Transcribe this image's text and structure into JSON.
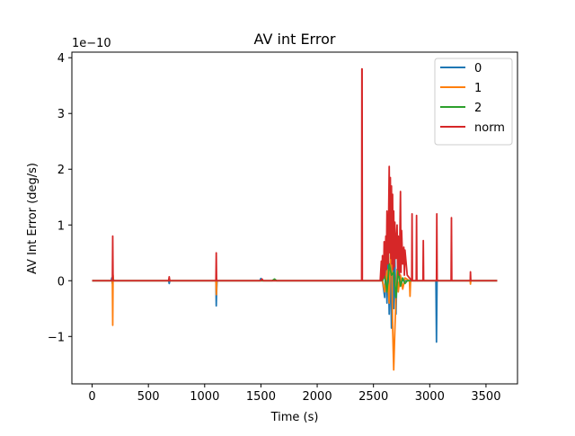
{
  "chart_data": {
    "type": "line",
    "title": "AV int Error",
    "xlabel": "Time (s)",
    "ylabel": "AV Int Error (deg/s)",
    "y_scale_label": "1e−10",
    "y_multiplier": 1e-10,
    "xlim": [
      -180,
      3780
    ],
    "ylim": [
      -1.85,
      4.1
    ],
    "xticks": [
      0,
      500,
      1000,
      1500,
      2000,
      2500,
      3000,
      3500
    ],
    "xtick_labels": [
      "0",
      "500",
      "1000",
      "1500",
      "2000",
      "2500",
      "3000",
      "3500"
    ],
    "yticks": [
      -1,
      0,
      1,
      2,
      3,
      4
    ],
    "ytick_labels": [
      "−1",
      "0",
      "1",
      "2",
      "3",
      "4"
    ],
    "grid": false,
    "legend_position": "top-right",
    "series": [
      {
        "name": "0",
        "color": "#1f77b4",
        "x": [
          0,
          170,
          175,
          180,
          185,
          680,
          685,
          690,
          1100,
          1103,
          1106,
          1110,
          1490,
          1500,
          1510,
          2580,
          2600,
          2610,
          2620,
          2630,
          2640,
          2650,
          2660,
          2670,
          2680,
          2690,
          2700,
          2710,
          2720,
          2740,
          2760,
          3055,
          3060,
          3065,
          3600
        ],
        "values": [
          0,
          0,
          0.05,
          -0.05,
          0,
          0,
          -0.05,
          0,
          0,
          -0.45,
          -0.2,
          0,
          0,
          0.04,
          0,
          0,
          -0.3,
          0.4,
          -0.4,
          0.5,
          -0.6,
          0.5,
          -0.85,
          0.6,
          -0.5,
          0.4,
          -0.6,
          0.2,
          -0.15,
          0.05,
          0,
          0,
          -1.1,
          0,
          0
        ]
      },
      {
        "name": "1",
        "color": "#ff7f0e",
        "x": [
          0,
          180,
          183,
          186,
          190,
          680,
          685,
          690,
          1100,
          1104,
          1108,
          2580,
          2600,
          2620,
          2640,
          2650,
          2660,
          2670,
          2680,
          2690,
          2700,
          2710,
          2720,
          2740,
          2760,
          2780,
          2820,
          2825,
          2830,
          3360,
          3362,
          3365,
          3600
        ],
        "values": [
          0,
          0,
          -0.8,
          0.1,
          0,
          0,
          0.04,
          0,
          0,
          -0.25,
          0,
          0,
          -0.2,
          0.2,
          -0.4,
          0.4,
          1.0,
          -0.8,
          -1.6,
          -0.9,
          -0.3,
          0.2,
          -0.2,
          0.1,
          -0.15,
          0.05,
          0,
          -0.28,
          0,
          0,
          -0.06,
          0,
          0
        ]
      },
      {
        "name": "2",
        "color": "#2ca02c",
        "x": [
          0,
          180,
          185,
          190,
          1500,
          1600,
          1620,
          1640,
          2580,
          2600,
          2620,
          2640,
          2660,
          2680,
          2700,
          2720,
          2740,
          2760,
          2780,
          2800,
          3600
        ],
        "values": [
          0,
          0,
          0.03,
          0,
          0,
          0,
          0.03,
          0,
          0,
          0.1,
          -0.2,
          0.3,
          0.1,
          0.15,
          -0.3,
          0.2,
          -0.1,
          0.05,
          -0.05,
          0,
          0
        ]
      },
      {
        "name": "norm",
        "color": "#d62728",
        "x": [
          0,
          180,
          183,
          186,
          680,
          685,
          690,
          1100,
          1103,
          1106,
          1500,
          1510,
          1520,
          2395,
          2397,
          2399,
          2401,
          2403,
          2560,
          2570,
          2575,
          2580,
          2590,
          2595,
          2600,
          2610,
          2615,
          2620,
          2630,
          2640,
          2645,
          2650,
          2655,
          2660,
          2665,
          2670,
          2675,
          2680,
          2685,
          2690,
          2700,
          2710,
          2715,
          2720,
          2730,
          2740,
          2745,
          2750,
          2760,
          2770,
          2775,
          2780,
          2800,
          2840,
          2843,
          2846,
          2880,
          2883,
          2886,
          2940,
          2943,
          2946,
          3060,
          3063,
          3066,
          3190,
          3193,
          3196,
          3360,
          3362,
          3365,
          3600
        ],
        "values": [
          0,
          0,
          0.8,
          0,
          0,
          0.07,
          0,
          0,
          0.5,
          0,
          0,
          0.03,
          0,
          0,
          3.8,
          3.8,
          0,
          0,
          0,
          0.35,
          0,
          0.45,
          0.05,
          0.7,
          0.1,
          0.8,
          0.2,
          1.25,
          0.3,
          2.05,
          0.5,
          1.85,
          0.4,
          1.7,
          0.3,
          1.55,
          0.2,
          1.25,
          0.25,
          1.05,
          0.4,
          1.0,
          0.2,
          0.8,
          0.1,
          1.6,
          0.15,
          0.9,
          0.3,
          0.6,
          0.1,
          0.55,
          0.1,
          0,
          1.2,
          0,
          0,
          1.17,
          0,
          0,
          0.72,
          0,
          0,
          1.2,
          0,
          0,
          1.13,
          0,
          0,
          0.16,
          0,
          0
        ]
      }
    ]
  }
}
